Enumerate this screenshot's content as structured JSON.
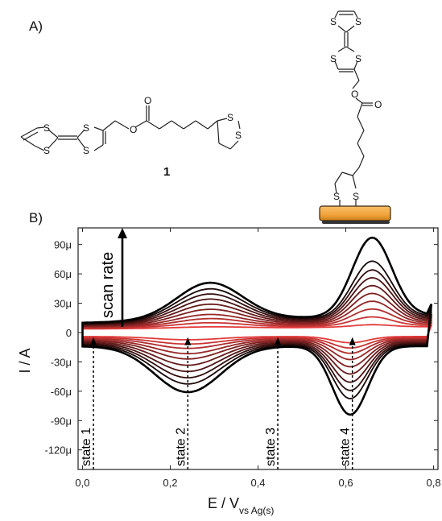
{
  "panel_a": {
    "label": "A)",
    "compound_number": "1",
    "atoms": {
      "sulfur": "S",
      "oxygen": "O"
    }
  },
  "panel_b": {
    "label": "B)"
  },
  "chart_data": {
    "type": "line",
    "title": "",
    "xlabel_main": "E / V",
    "xlabel_sub": "vs Ag(s)",
    "ylabel": "I / A",
    "xlim": [
      -0.01,
      0.81
    ],
    "ylim": [
      -140,
      107
    ],
    "x_ticks": [
      0.0,
      0.2,
      0.4,
      0.6,
      0.8
    ],
    "x_tick_labels": [
      "0,0",
      "0,2",
      "0,4",
      "0,6",
      "0,8"
    ],
    "y_ticks": [
      90,
      60,
      30,
      0,
      -30,
      -60,
      -90,
      -120
    ],
    "y_tick_labels": [
      "90μ",
      "60μ",
      "30μ",
      "0",
      "-30μ",
      "-60μ",
      "-90μ",
      "-120μ"
    ],
    "y_unit": "μA",
    "grid": false,
    "legend": "none",
    "colors": {
      "fastest_scan": "#000000",
      "slowest_scan": "#e33a3a",
      "accent_pad": "#f2a33c"
    },
    "scan_rate_annotation": "scan rate",
    "series_count": 10,
    "peak_currents_uA": {
      "oxidation_1": {
        "x": 0.29,
        "values": [
          48,
          42,
          37,
          32,
          27,
          22,
          17,
          13,
          9,
          5
        ]
      },
      "oxidation_2": {
        "x": 0.66,
        "values": [
          97,
          73,
          64,
          56,
          48,
          40,
          32,
          24,
          16,
          8
        ]
      },
      "reduction_1": {
        "x": 0.24,
        "values": [
          -57,
          -49,
          -43,
          -37,
          -31,
          -25,
          -20,
          -15,
          -11,
          -7
        ]
      },
      "reduction_2": {
        "x": 0.61,
        "values": [
          -80,
          -64,
          -56,
          -48,
          -40,
          -33,
          -26,
          -20,
          -15,
          -10
        ]
      }
    },
    "states": [
      {
        "label": "state 1",
        "x": 0.025
      },
      {
        "label": "state 2",
        "x": 0.24
      },
      {
        "label": "state 3",
        "x": 0.445
      },
      {
        "label": "state 4",
        "x": 0.615
      }
    ]
  }
}
